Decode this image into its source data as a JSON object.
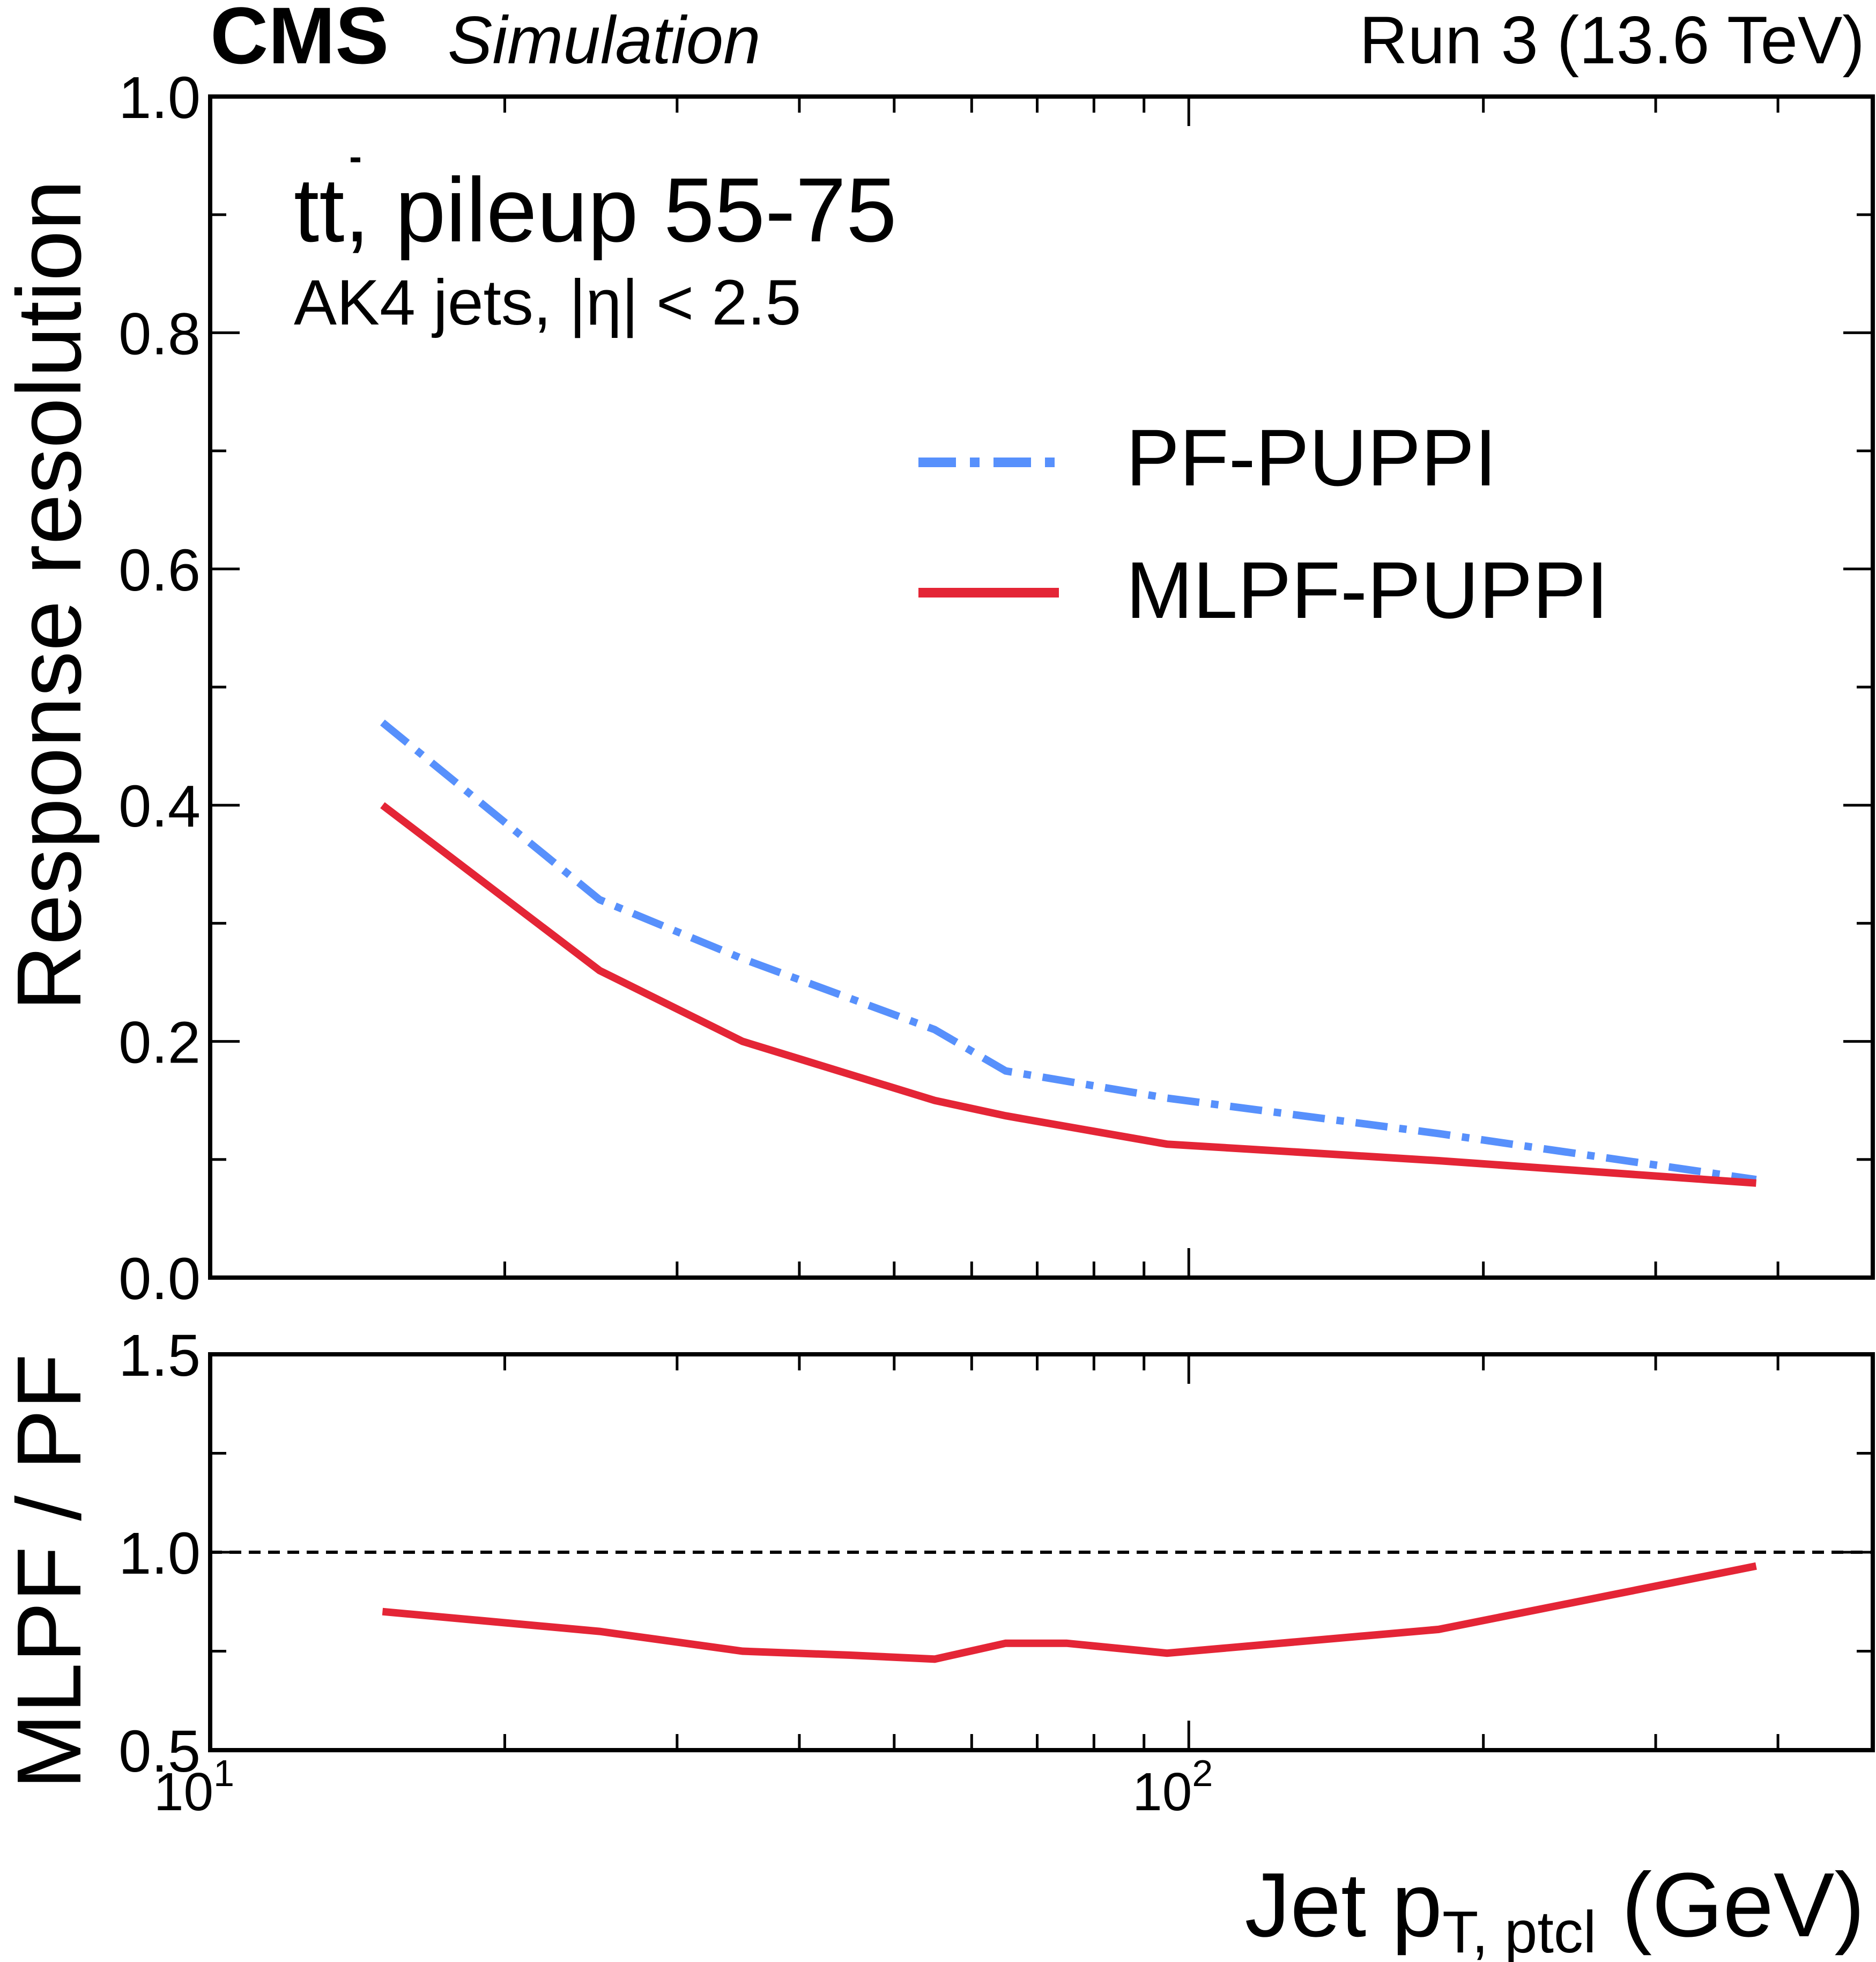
{
  "header": {
    "experiment": "CMS",
    "status": "Simulation",
    "run_label": "Run 3 (13.6 TeV)"
  },
  "annotation": {
    "process_main": "t",
    "process_bar": "t",
    "process_rest": ", pileup 55-75",
    "selection": "AK4 jets, |η| < 2.5"
  },
  "legend": {
    "pf": "PF-PUPPI",
    "mlpf": "MLPF-PUPPI"
  },
  "colors": {
    "pf": "#5790fc",
    "mlpf": "#e42536",
    "frame": "#000000"
  },
  "chart_data": [
    {
      "type": "line",
      "panel": "main",
      "ylabel": "Response resolution",
      "xscale": "log",
      "xlim": [
        10,
        500
      ],
      "ylim": [
        0.0,
        1.0
      ],
      "yticks": [
        "0.0",
        "0.2",
        "0.4",
        "0.6",
        "0.8",
        "1.0"
      ],
      "x": [
        15,
        25,
        35,
        55,
        65,
        95,
        180,
        380
      ],
      "series": [
        {
          "name": "PF-PUPPI",
          "style": "dashdot",
          "values": [
            0.47,
            0.32,
            0.27,
            0.21,
            0.175,
            0.152,
            0.122,
            0.083
          ]
        },
        {
          "name": "MLPF-PUPPI",
          "style": "solid",
          "values": [
            0.4,
            0.26,
            0.2,
            0.15,
            0.137,
            0.113,
            0.099,
            0.08
          ]
        }
      ]
    },
    {
      "type": "line",
      "panel": "ratio",
      "ylabel": "MLPF / PF",
      "xlabel_main": "Jet p",
      "xlabel_sub": "T, ptcl",
      "xlabel_unit": "(GeV)",
      "xscale": "log",
      "xlim": [
        10,
        500
      ],
      "ylim": [
        0.5,
        1.5
      ],
      "yticks": [
        "0.5",
        "1.0",
        "1.5"
      ],
      "xtick_base": "10",
      "xticks_exp": [
        "1",
        "2"
      ],
      "reference_line": 1.0,
      "x": [
        15,
        25,
        35,
        45,
        55,
        65,
        75,
        95,
        180,
        380
      ],
      "series": [
        {
          "name": "MLPF-PUPPI / PF-PUPPI",
          "style": "solid",
          "values": [
            0.85,
            0.8,
            0.75,
            0.74,
            0.73,
            0.77,
            0.77,
            0.745,
            0.805,
            0.965
          ]
        }
      ]
    }
  ]
}
